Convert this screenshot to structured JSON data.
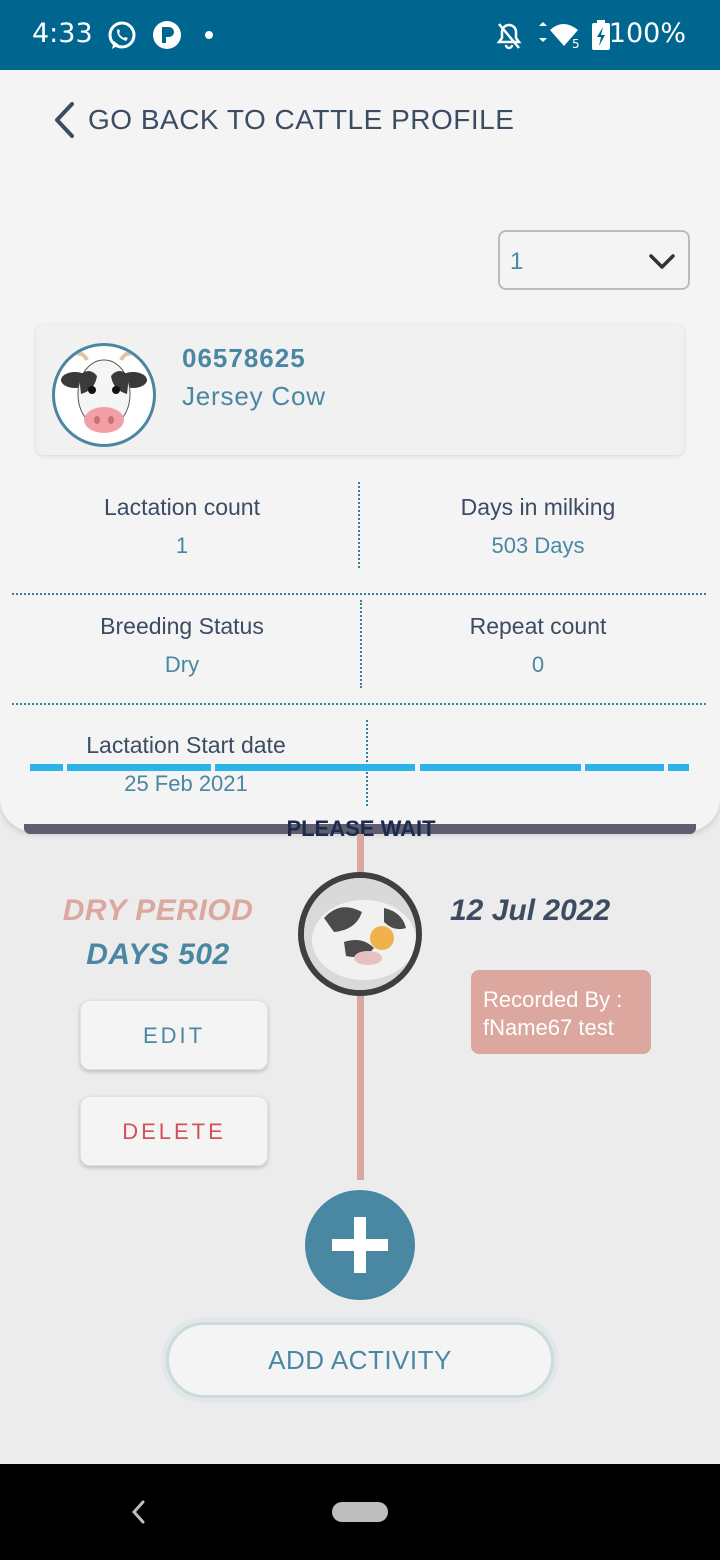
{
  "status_bar": {
    "time": "4:33",
    "battery": "100%",
    "network_badge": "5"
  },
  "header": {
    "back_label": "GO BACK TO CATTLE PROFILE"
  },
  "lactation_select": {
    "value": "1"
  },
  "cattle": {
    "id": "06578625",
    "breed": "Jersey  Cow"
  },
  "stats": {
    "lactation_count_label": "Lactation count",
    "lactation_count_value": "1",
    "days_in_milking_label": "Days in milking",
    "days_in_milking_value": "503 Days",
    "breeding_status_label": "Breeding Status",
    "breeding_status_value": "Dry",
    "repeat_count_label": "Repeat count",
    "repeat_count_value": "0",
    "lactation_start_label": "Lactation Start date",
    "lactation_start_value": "25 Feb 2021"
  },
  "loading": {
    "message": "PLEASE WAIT"
  },
  "timeline_event": {
    "title_line1": "DRY PERIOD",
    "title_line2": "DAYS 502",
    "date": "12 Jul 2022",
    "recorded_by": "Recorded By : fName67 test",
    "edit_label": "EDIT",
    "delete_label": "DELETE"
  },
  "actions": {
    "add_activity_label": "ADD ACTIVITY"
  },
  "colors": {
    "accent": "#4a87a3",
    "status_bar": "#00668f",
    "timeline": "#dba79e",
    "danger": "#d0535a",
    "progress": "#2bb4ea"
  }
}
